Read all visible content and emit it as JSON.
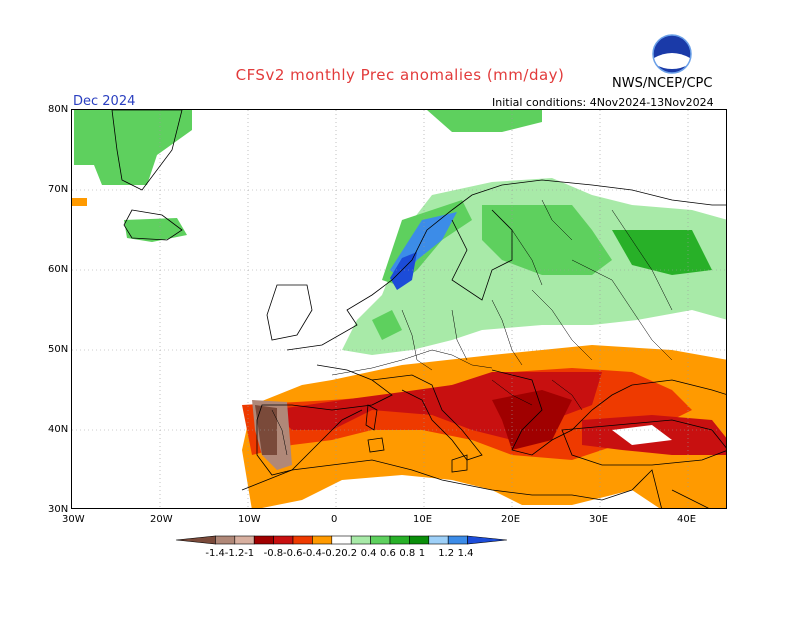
{
  "title": "CFSv2 monthly Prec anomalies (mm/day)",
  "agency": "NWS/NCEP/CPC",
  "logo_text": "NOAA",
  "target_month": "Dec 2024",
  "initial_conditions": "Initial conditions: 4Nov2024-13Nov2024",
  "lat_labels": [
    "80N",
    "70N",
    "60N",
    "50N",
    "40N",
    "30N"
  ],
  "lon_labels": [
    "30W",
    "20W",
    "10W",
    "0",
    "10E",
    "20E",
    "30E",
    "40E"
  ],
  "colorbar": {
    "labels": [
      "-1.4",
      "-1.2",
      "-1",
      "-0.8",
      "-0.6",
      "-0.4",
      "-0.2",
      "0.2",
      "0.4",
      "0.6",
      "0.8",
      "1",
      "1.2",
      "1.4"
    ],
    "colors": [
      "#7a4a3a",
      "#b08878",
      "#d8b0a0",
      "#a00000",
      "#c81010",
      "#ee3a00",
      "#ff9a00",
      "#ffffff",
      "#a8eaa8",
      "#5ed05e",
      "#28b028",
      "#0a8e0a",
      "#9ed0f8",
      "#3c8ce8",
      "#1c4cd8"
    ]
  }
}
